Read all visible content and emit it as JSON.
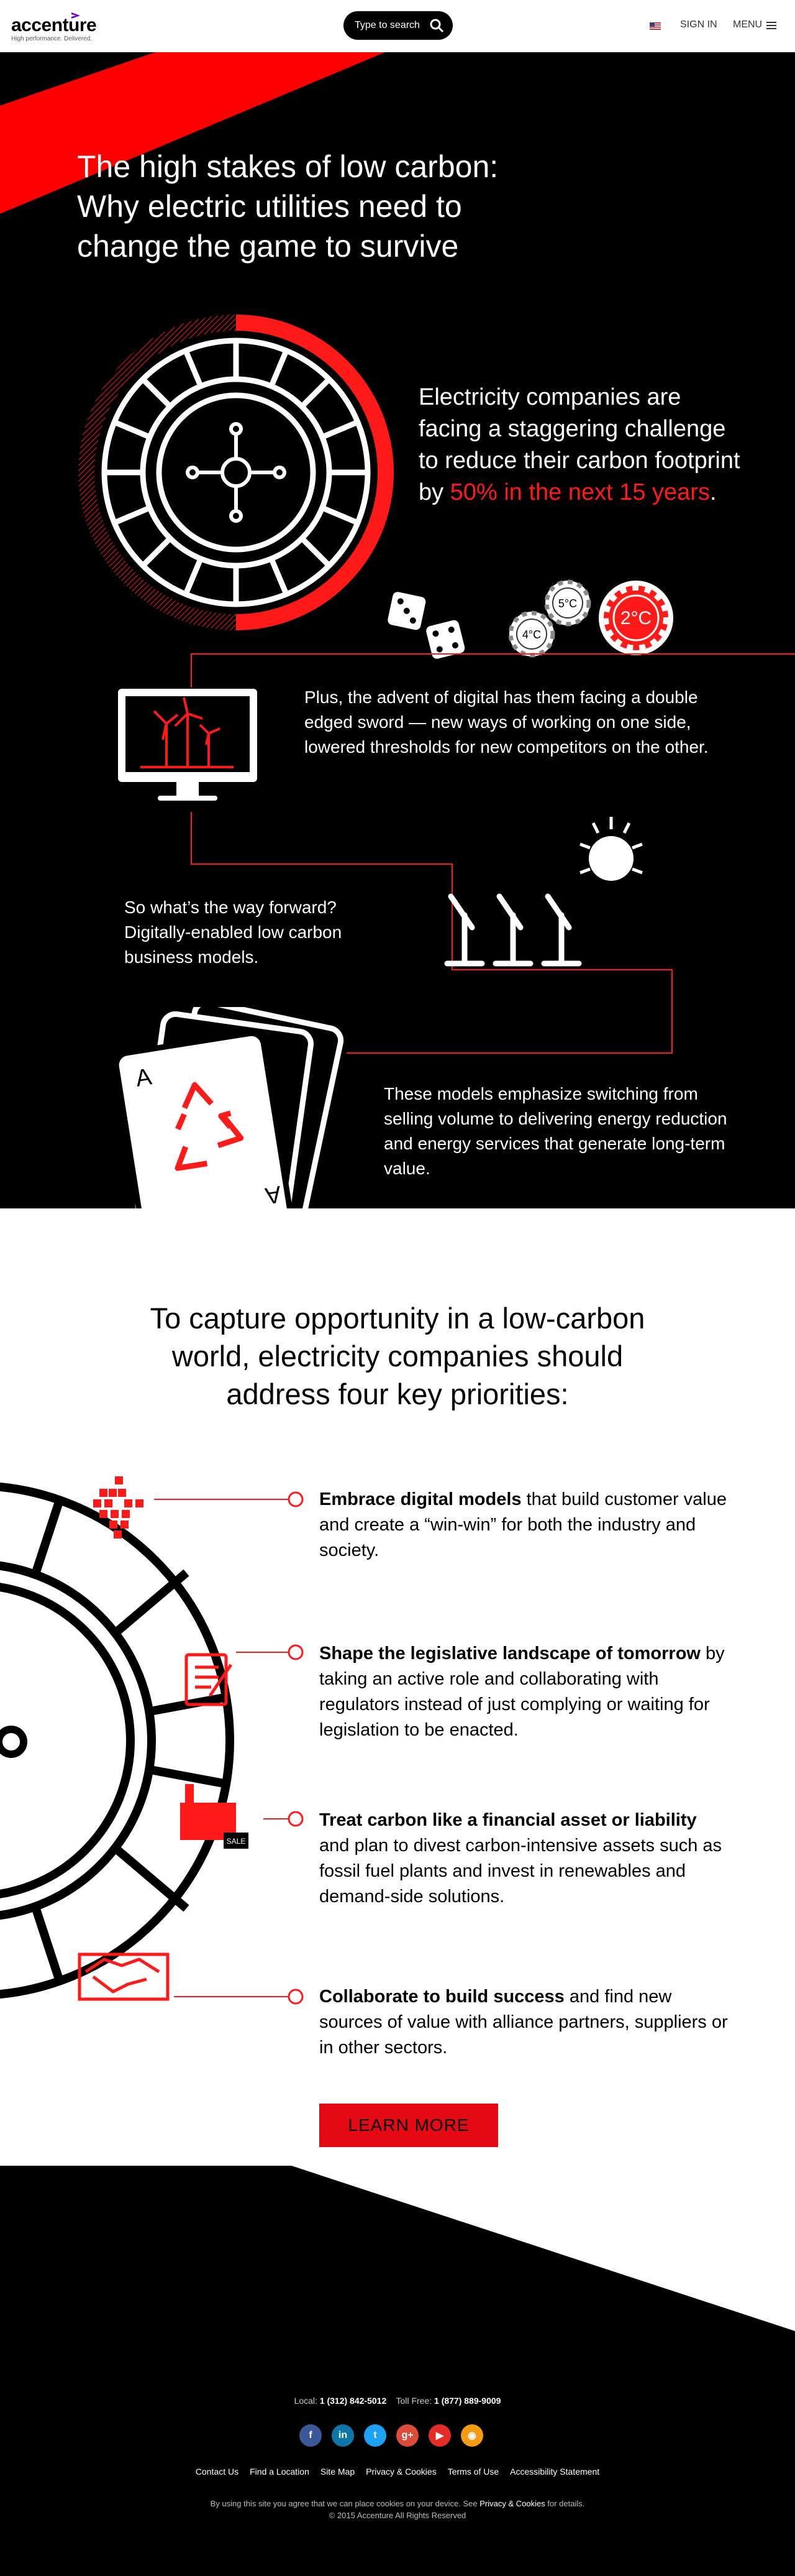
{
  "header": {
    "logo_text": "accenture",
    "tagline": "High performance. Delivered.",
    "search_label": "Type to search",
    "signin_label": "SIGN IN",
    "menu_label": "MENU"
  },
  "hero": {
    "title_line1": "The high stakes of low carbon:",
    "title_line2": "Why electric utilities need to",
    "title_line3": "change the game to survive"
  },
  "intro": {
    "text": "Electricity companies are facing a staggering challenge to reduce their carbon footprint by ",
    "highlight": "50% in the next 15 years",
    "end": "."
  },
  "chips": {
    "chip1": "4°C",
    "chip2": "5°C",
    "chip3": "2°C"
  },
  "digital_text": "Plus, the advent of digital has them facing a double edged sword — new ways of working on one side, lowered thresholds for new competitors on the other.",
  "forward_text": "So what’s the way forward? Digitally-enabled low carbon business models.",
  "card": {
    "rank": "A"
  },
  "models_text": "These models emphasize switching from selling volume to delivering energy reduction and energy services that generate long-term value.",
  "priorities": {
    "title_line1": "To capture opportunity in a low-carbon",
    "title_line2": "world, electricity companies should",
    "title_line3": "address four key priorities:",
    "items": [
      {
        "bold": "Embrace digital models",
        "rest": " that build customer value and create a “win-win” for both the industry and society."
      },
      {
        "bold": "Shape the legislative landscape of tomorrow",
        "rest": " by taking an active role and collaborating with regulators instead of just complying or waiting for legislation to be enacted."
      },
      {
        "bold": "Treat carbon like a financial asset or liability",
        "rest": " and plan to divest carbon-intensive assets such as fossil fuel plants and invest in renewables and demand-side solutions."
      },
      {
        "bold": "Collaborate to build success",
        "rest": " and find new sources of value with alliance partners, suppliers or in other sectors."
      }
    ],
    "sale_tag": "SALE",
    "button_label": "LEARN MORE"
  },
  "footer": {
    "local_label": "Local:",
    "local_number": "1 (312) 842-5012",
    "tollfree_label": "Toll Free:",
    "tollfree_number": "1 (877) 889-9009",
    "links": [
      "Contact Us",
      "Find a Location",
      "Site Map",
      "Privacy & Cookies",
      "Terms of Use",
      "Accessibility Statement"
    ],
    "cookie_text": "By using this site you agree that we can place cookies on your device. See",
    "cookie_link": "Privacy & Cookies",
    "cookie_end": "for details.",
    "copyright": "© 2015 Accenture All Rights Reserved",
    "socials": [
      {
        "icon": "facebook-icon",
        "glyph": "f",
        "color": "#3b5998"
      },
      {
        "icon": "linkedin-icon",
        "glyph": "in",
        "color": "#0e76a8"
      },
      {
        "icon": "twitter-icon",
        "glyph": "t",
        "color": "#1da1f2"
      },
      {
        "icon": "googleplus-icon",
        "glyph": "g+",
        "color": "#dd4b39"
      },
      {
        "icon": "youtube-icon",
        "glyph": "▶",
        "color": "#e52d27"
      },
      {
        "icon": "rss-icon",
        "glyph": "◉",
        "color": "#f39c12"
      }
    ]
  },
  "colors": {
    "accent": "#ff1a1a",
    "button": "#e50914"
  }
}
